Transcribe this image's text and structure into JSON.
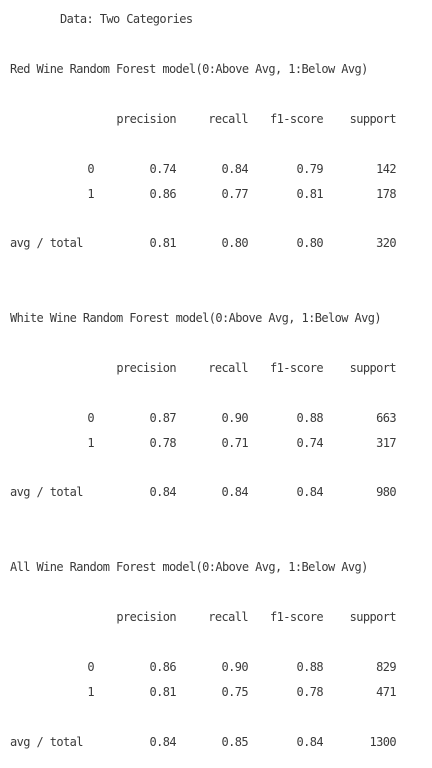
{
  "heading": "Data: Two Categories",
  "columns": [
    "precision",
    "recall",
    "f1-score",
    "support"
  ],
  "reports": [
    {
      "title": "Red Wine Random Forest model(0:Above Avg, 1:Below Avg)",
      "rows": [
        {
          "label": "0",
          "precision": "0.74",
          "recall": "0.84",
          "f1": "0.79",
          "support": "142"
        },
        {
          "label": "1",
          "precision": "0.86",
          "recall": "0.77",
          "f1": "0.81",
          "support": "178"
        }
      ],
      "total": {
        "label": "avg / total",
        "precision": "0.81",
        "recall": "0.80",
        "f1": "0.80",
        "support": "320"
      }
    },
    {
      "title": "White Wine Random Forest model(0:Above Avg, 1:Below Avg)",
      "rows": [
        {
          "label": "0",
          "precision": "0.87",
          "recall": "0.90",
          "f1": "0.88",
          "support": "663"
        },
        {
          "label": "1",
          "precision": "0.78",
          "recall": "0.71",
          "f1": "0.74",
          "support": "317"
        }
      ],
      "total": {
        "label": "avg / total",
        "precision": "0.84",
        "recall": "0.84",
        "f1": "0.84",
        "support": "980"
      }
    },
    {
      "title": "All Wine Random Forest model(0:Above Avg, 1:Below Avg)",
      "rows": [
        {
          "label": "0",
          "precision": "0.86",
          "recall": "0.90",
          "f1": "0.88",
          "support": "829"
        },
        {
          "label": "1",
          "precision": "0.81",
          "recall": "0.75",
          "f1": "0.78",
          "support": "471"
        }
      ],
      "total": {
        "label": "avg / total",
        "precision": "0.84",
        "recall": "0.85",
        "f1": "0.84",
        "support": "1300"
      }
    }
  ]
}
